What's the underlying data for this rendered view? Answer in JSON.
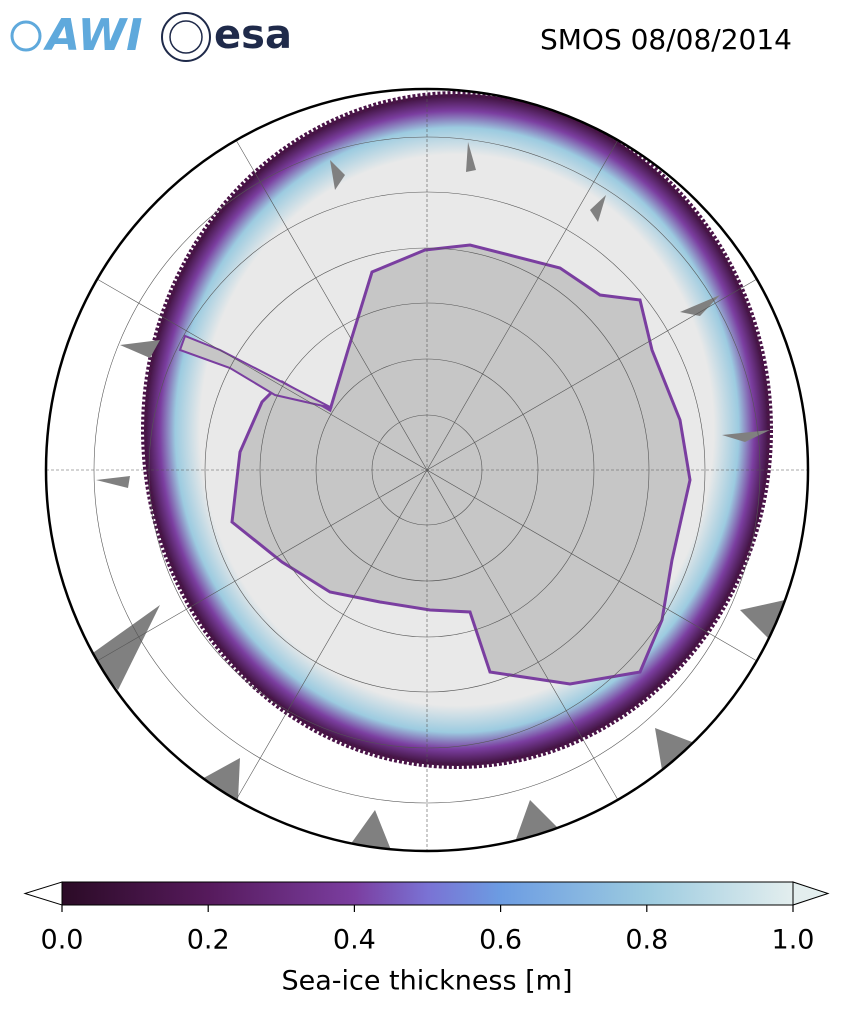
{
  "header": {
    "logos": [
      "AWI",
      "esa"
    ],
    "title": "SMOS 08/08/2014"
  },
  "colorbar": {
    "label": "Sea-ice thickness [m]",
    "lim": [
      0,
      1
    ],
    "ticks": [
      {
        "value": 0,
        "label": "0.0"
      },
      {
        "value": 0.2,
        "label": "0.2"
      },
      {
        "value": 0.4,
        "label": "0.4"
      },
      {
        "value": 0.6,
        "label": "0.6"
      },
      {
        "value": 0.8,
        "label": "0.8"
      },
      {
        "value": 1,
        "label": "1.0"
      }
    ]
  }
}
